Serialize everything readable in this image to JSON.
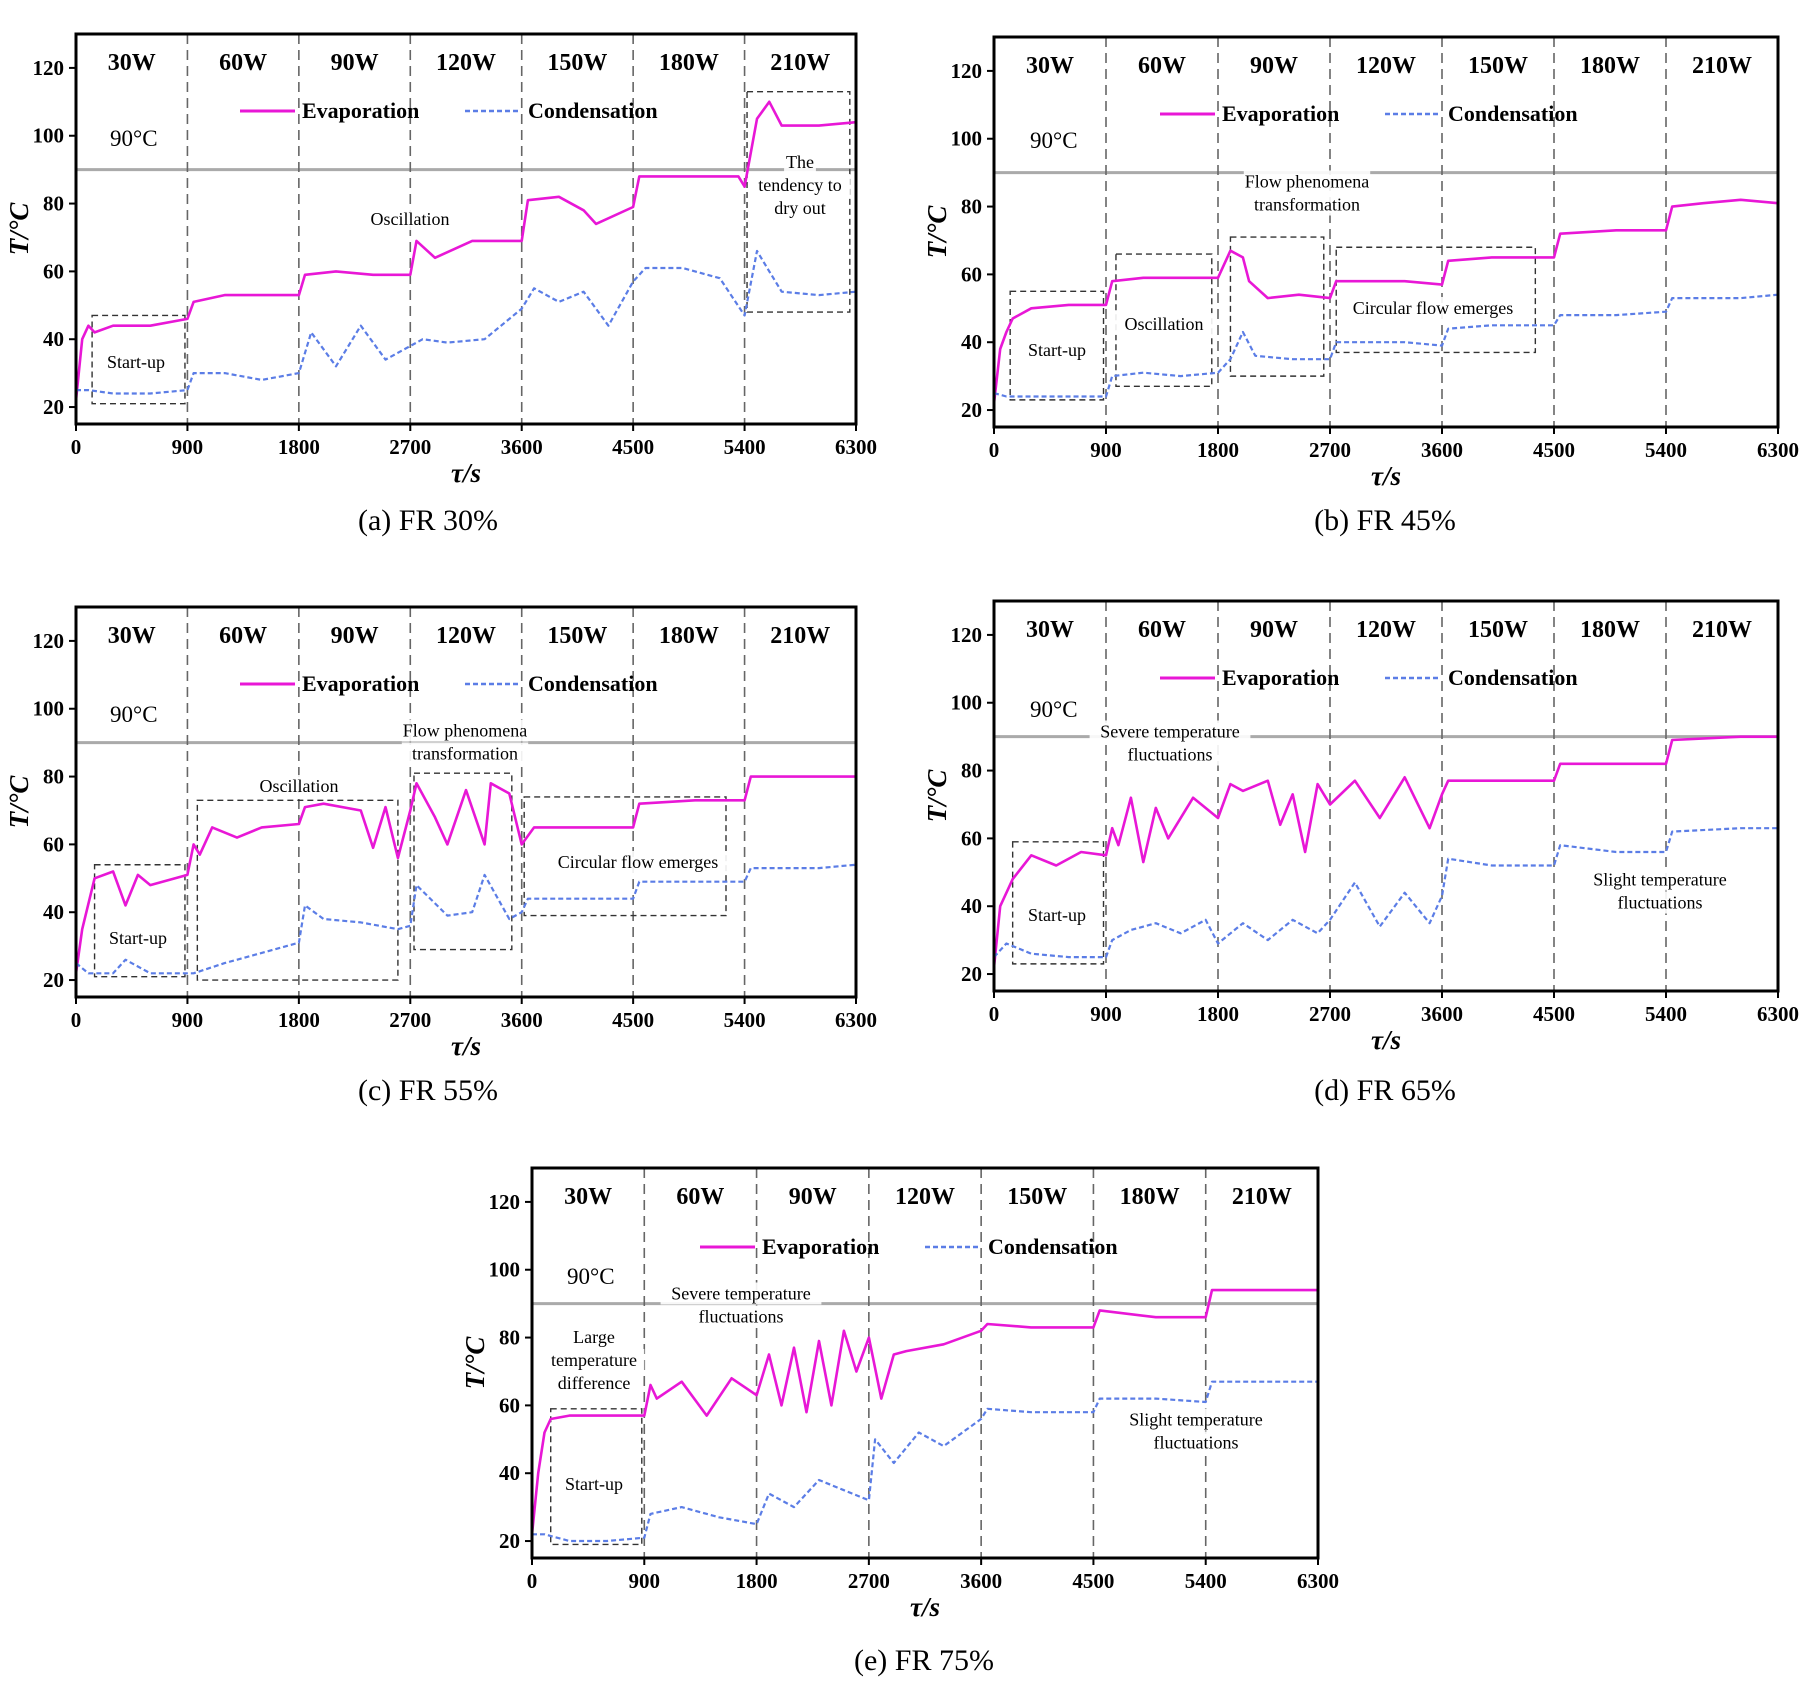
{
  "chart_data": [
    {
      "panel": "a",
      "type": "line",
      "caption": "(a) FR 30%",
      "xlabel": "τ/s",
      "ylabel": "T/°C",
      "xlim": [
        0,
        6300
      ],
      "ylim": [
        15,
        130
      ],
      "xticks": [
        0,
        900,
        1800,
        2700,
        3600,
        4500,
        5400,
        6300
      ],
      "yticks": [
        20,
        40,
        60,
        80,
        100,
        120
      ],
      "power_labels": [
        "30W",
        "60W",
        "90W",
        "120W",
        "150W",
        "180W",
        "210W"
      ],
      "reference_line": {
        "y": 90,
        "label": "90°C"
      },
      "legend": [
        "Evaporation",
        "Condensation"
      ],
      "series_colors": [
        "#e817d6",
        "#5b7de6"
      ],
      "series": [
        {
          "name": "Evaporation",
          "x": [
            0,
            50,
            100,
            150,
            300,
            600,
            900,
            950,
            1200,
            1500,
            1800,
            1850,
            2100,
            2400,
            2700,
            2750,
            2900,
            3200,
            3600,
            3650,
            3900,
            4100,
            4200,
            4500,
            4550,
            4800,
            5100,
            5350,
            5400,
            5500,
            5600,
            5700,
            6000,
            6300
          ],
          "values": [
            22,
            40,
            44,
            42,
            44,
            44,
            46,
            51,
            53,
            53,
            53,
            59,
            60,
            59,
            59,
            69,
            64,
            69,
            69,
            81,
            82,
            78,
            74,
            79,
            88,
            88,
            88,
            88,
            85,
            105,
            110,
            103,
            103,
            104
          ]
        },
        {
          "name": "Condensation",
          "x": [
            0,
            100,
            300,
            600,
            900,
            950,
            1200,
            1500,
            1800,
            1900,
            2100,
            2300,
            2500,
            2700,
            2800,
            3000,
            3300,
            3600,
            3700,
            3900,
            4100,
            4300,
            4500,
            4600,
            4900,
            5200,
            5400,
            5500,
            5600,
            5700,
            6000,
            6300
          ],
          "values": [
            25,
            25,
            24,
            24,
            25,
            30,
            30,
            28,
            30,
            42,
            32,
            44,
            34,
            38,
            40,
            39,
            40,
            49,
            55,
            51,
            54,
            44,
            57,
            61,
            61,
            58,
            47,
            66,
            60,
            54,
            53,
            54
          ]
        }
      ],
      "annotations": [
        {
          "text": "Start-up",
          "box_x": [
            130,
            880
          ],
          "box_y": [
            21,
            47
          ]
        },
        {
          "text": "Oscillation",
          "x": 2700,
          "y": 80
        },
        {
          "text": "The tendency to dry out",
          "box_x": [
            5420,
            6250
          ],
          "box_y": [
            48,
            113
          ]
        }
      ]
    },
    {
      "panel": "b",
      "type": "line",
      "caption": "(b) FR 45%",
      "xlabel": "τ/s",
      "ylabel": "T/°C",
      "xlim": [
        0,
        6300
      ],
      "ylim": [
        15,
        130
      ],
      "xticks": [
        0,
        900,
        1800,
        2700,
        3600,
        4500,
        5400,
        6300
      ],
      "yticks": [
        20,
        40,
        60,
        80,
        100,
        120
      ],
      "power_labels": [
        "30W",
        "60W",
        "90W",
        "120W",
        "150W",
        "180W",
        "210W"
      ],
      "reference_line": {
        "y": 90,
        "label": "90°C"
      },
      "legend": [
        "Evaporation",
        "Condensation"
      ],
      "series_colors": [
        "#e817d6",
        "#5b7de6"
      ],
      "series": [
        {
          "name": "Evaporation",
          "x": [
            0,
            50,
            100,
            150,
            300,
            600,
            900,
            950,
            1200,
            1500,
            1800,
            1900,
            2000,
            2050,
            2200,
            2450,
            2700,
            2750,
            3000,
            3300,
            3600,
            3650,
            4000,
            4500,
            4550,
            5000,
            5400,
            5450,
            5700,
            6000,
            6300
          ],
          "values": [
            22,
            38,
            43,
            47,
            50,
            51,
            51,
            58,
            59,
            59,
            59,
            67,
            65,
            58,
            53,
            54,
            53,
            58,
            58,
            58,
            57,
            64,
            65,
            65,
            72,
            73,
            73,
            80,
            81,
            82,
            81
          ]
        },
        {
          "name": "Condensation",
          "x": [
            0,
            100,
            300,
            600,
            900,
            950,
            1200,
            1500,
            1800,
            1900,
            2000,
            2100,
            2400,
            2700,
            2750,
            3000,
            3300,
            3600,
            3650,
            4000,
            4500,
            4550,
            5000,
            5400,
            5450,
            6000,
            6300
          ],
          "values": [
            25,
            24,
            24,
            24,
            24,
            30,
            31,
            30,
            31,
            35,
            43,
            36,
            35,
            35,
            40,
            40,
            40,
            39,
            44,
            45,
            45,
            48,
            48,
            49,
            53,
            53,
            54
          ]
        }
      ],
      "annotations": [
        {
          "text": "Start-up",
          "box_x": [
            130,
            880
          ],
          "box_y": [
            23,
            55
          ]
        },
        {
          "text": "Oscillation",
          "box_x": [
            980,
            1750
          ],
          "box_y": [
            27,
            66
          ]
        },
        {
          "text": "Flow phenomena transformation",
          "box_x": [
            1900,
            2650
          ],
          "box_y": [
            30,
            71
          ]
        },
        {
          "text": "Circular flow emerges",
          "box_x": [
            2750,
            4350
          ],
          "box_y": [
            37,
            68
          ]
        }
      ]
    },
    {
      "panel": "c",
      "type": "line",
      "caption": "(c) FR 55%",
      "xlabel": "τ/s",
      "ylabel": "T/°C",
      "xlim": [
        0,
        6300
      ],
      "ylim": [
        15,
        130
      ],
      "xticks": [
        0,
        900,
        1800,
        2700,
        3600,
        4500,
        5400,
        6300
      ],
      "yticks": [
        20,
        40,
        60,
        80,
        100,
        120
      ],
      "power_labels": [
        "30W",
        "60W",
        "90W",
        "120W",
        "150W",
        "180W",
        "210W"
      ],
      "reference_line": {
        "y": 90,
        "label": "90°C"
      },
      "legend": [
        "Evaporation",
        "Condensation"
      ],
      "series_colors": [
        "#e817d6",
        "#5b7de6"
      ],
      "series": [
        {
          "name": "Evaporation",
          "x": [
            0,
            50,
            150,
            300,
            400,
            500,
            600,
            900,
            950,
            1000,
            1100,
            1300,
            1500,
            1800,
            1850,
            2000,
            2300,
            2400,
            2500,
            2600,
            2700,
            2750,
            2900,
            3000,
            3150,
            3300,
            3350,
            3500,
            3600,
            3700,
            4000,
            4500,
            4550,
            5000,
            5400,
            5450,
            6000,
            6300
          ],
          "values": [
            22,
            35,
            50,
            52,
            42,
            51,
            48,
            51,
            60,
            57,
            65,
            62,
            65,
            66,
            71,
            72,
            70,
            59,
            71,
            56,
            70,
            78,
            68,
            60,
            76,
            60,
            78,
            75,
            60,
            65,
            65,
            65,
            72,
            73,
            73,
            80,
            80,
            80
          ]
        },
        {
          "name": "Condensation",
          "x": [
            0,
            100,
            300,
            400,
            600,
            900,
            950,
            1200,
            1500,
            1800,
            1850,
            2000,
            2300,
            2600,
            2700,
            2750,
            3000,
            3200,
            3300,
            3500,
            3600,
            3650,
            4000,
            4500,
            4550,
            5000,
            5400,
            5450,
            6000,
            6300
          ],
          "values": [
            25,
            22,
            22,
            26,
            22,
            22,
            22,
            25,
            28,
            31,
            42,
            38,
            37,
            35,
            36,
            48,
            39,
            40,
            51,
            38,
            40,
            44,
            44,
            44,
            49,
            49,
            49,
            53,
            53,
            54
          ]
        }
      ],
      "annotations": [
        {
          "text": "Start-up",
          "box_x": [
            150,
            880
          ],
          "box_y": [
            21,
            54
          ]
        },
        {
          "text": "Oscillation",
          "box_x": [
            980,
            2600
          ],
          "box_y": [
            20,
            73
          ]
        },
        {
          "text": "Flow phenomena transformation",
          "box_x": [
            2730,
            3520
          ],
          "box_y": [
            29,
            81
          ]
        },
        {
          "text": "Circular flow emerges",
          "box_x": [
            3620,
            5250
          ],
          "box_y": [
            39,
            74
          ]
        }
      ]
    },
    {
      "panel": "d",
      "type": "line",
      "caption": "(d) FR 65%",
      "xlabel": "τ/s",
      "ylabel": "T/°C",
      "xlim": [
        0,
        6300
      ],
      "ylim": [
        15,
        130
      ],
      "xticks": [
        0,
        900,
        1800,
        2700,
        3600,
        4500,
        5400,
        6300
      ],
      "yticks": [
        20,
        40,
        60,
        80,
        100,
        120
      ],
      "power_labels": [
        "30W",
        "60W",
        "90W",
        "120W",
        "150W",
        "180W",
        "210W"
      ],
      "reference_line": {
        "y": 90,
        "label": "90°C"
      },
      "legend": [
        "Evaporation",
        "Condensation"
      ],
      "series_colors": [
        "#e817d6",
        "#5b7de6"
      ],
      "series": [
        {
          "name": "Evaporation",
          "x": [
            0,
            50,
            150,
            300,
            500,
            700,
            900,
            950,
            1000,
            1100,
            1200,
            1300,
            1400,
            1600,
            1800,
            1900,
            2000,
            2200,
            2300,
            2400,
            2500,
            2600,
            2700,
            2900,
            3100,
            3300,
            3500,
            3600,
            3650,
            4000,
            4500,
            4550,
            5000,
            5400,
            5450,
            6000,
            6300
          ],
          "values": [
            22,
            40,
            48,
            55,
            52,
            56,
            55,
            63,
            58,
            72,
            53,
            69,
            60,
            72,
            66,
            76,
            74,
            77,
            64,
            73,
            56,
            76,
            70,
            77,
            66,
            78,
            63,
            73,
            77,
            77,
            77,
            82,
            82,
            82,
            89,
            90,
            90
          ]
        },
        {
          "name": "Condensation",
          "x": [
            0,
            100,
            300,
            600,
            900,
            950,
            1100,
            1300,
            1500,
            1700,
            1800,
            2000,
            2200,
            2400,
            2600,
            2700,
            2900,
            3100,
            3300,
            3500,
            3600,
            3650,
            4000,
            4500,
            4550,
            5000,
            5400,
            5450,
            6000,
            6300
          ],
          "values": [
            25,
            29,
            26,
            25,
            25,
            30,
            33,
            35,
            32,
            36,
            29,
            35,
            30,
            36,
            32,
            36,
            47,
            34,
            44,
            35,
            43,
            54,
            52,
            52,
            58,
            56,
            56,
            62,
            63,
            63
          ]
        }
      ],
      "annotations": [
        {
          "text": "Start-up",
          "box_x": [
            150,
            880
          ],
          "box_y": [
            23,
            59
          ]
        },
        {
          "text": "Severe temperature fluctuations",
          "x": 1700,
          "y": 88
        },
        {
          "text": "Slight temperature fluctuations",
          "x": 5400,
          "y": 40
        }
      ]
    },
    {
      "panel": "e",
      "type": "line",
      "caption": "(e) FR 75%",
      "xlabel": "τ/s",
      "ylabel": "T/°C",
      "xlim": [
        0,
        6300
      ],
      "ylim": [
        15,
        130
      ],
      "xticks": [
        0,
        900,
        1800,
        2700,
        3600,
        4500,
        5400,
        6300
      ],
      "yticks": [
        20,
        40,
        60,
        80,
        100,
        120
      ],
      "power_labels": [
        "30W",
        "60W",
        "90W",
        "120W",
        "150W",
        "180W",
        "210W"
      ],
      "reference_line": {
        "y": 90,
        "label": "90°C"
      },
      "legend": [
        "Evaporation",
        "Condensation"
      ],
      "series_colors": [
        "#e817d6",
        "#5b7de6"
      ],
      "series": [
        {
          "name": "Evaporation",
          "x": [
            0,
            50,
            100,
            150,
            300,
            600,
            900,
            950,
            1000,
            1200,
            1400,
            1600,
            1800,
            1900,
            2000,
            2100,
            2200,
            2300,
            2400,
            2500,
            2600,
            2700,
            2800,
            2900,
            3000,
            3300,
            3600,
            3650,
            4000,
            4500,
            4550,
            5000,
            5400,
            5450,
            6000,
            6300
          ],
          "values": [
            22,
            40,
            52,
            56,
            57,
            57,
            57,
            66,
            62,
            67,
            57,
            68,
            63,
            75,
            60,
            77,
            58,
            79,
            60,
            82,
            70,
            80,
            62,
            75,
            76,
            78,
            82,
            84,
            83,
            83,
            88,
            86,
            86,
            94,
            94,
            94
          ]
        },
        {
          "name": "Condensation",
          "x": [
            0,
            100,
            300,
            600,
            900,
            950,
            1200,
            1500,
            1800,
            1900,
            2100,
            2300,
            2500,
            2700,
            2750,
            2900,
            3100,
            3300,
            3600,
            3650,
            4000,
            4500,
            4550,
            5000,
            5400,
            5450,
            6000,
            6300
          ],
          "values": [
            22,
            22,
            20,
            20,
            21,
            28,
            30,
            27,
            25,
            34,
            30,
            38,
            35,
            32,
            50,
            43,
            52,
            48,
            56,
            59,
            58,
            58,
            62,
            62,
            61,
            67,
            67,
            67
          ]
        }
      ],
      "annotations": [
        {
          "text": "Large temperature difference",
          "x": 500,
          "y": 78
        },
        {
          "text": "Start-up",
          "box_x": [
            150,
            880
          ],
          "box_y": [
            19,
            59
          ]
        },
        {
          "text": "Severe temperature fluctuations",
          "x": 1700,
          "y": 88
        },
        {
          "text": "Slight temperature fluctuations",
          "x": 5400,
          "y": 36
        }
      ]
    }
  ]
}
